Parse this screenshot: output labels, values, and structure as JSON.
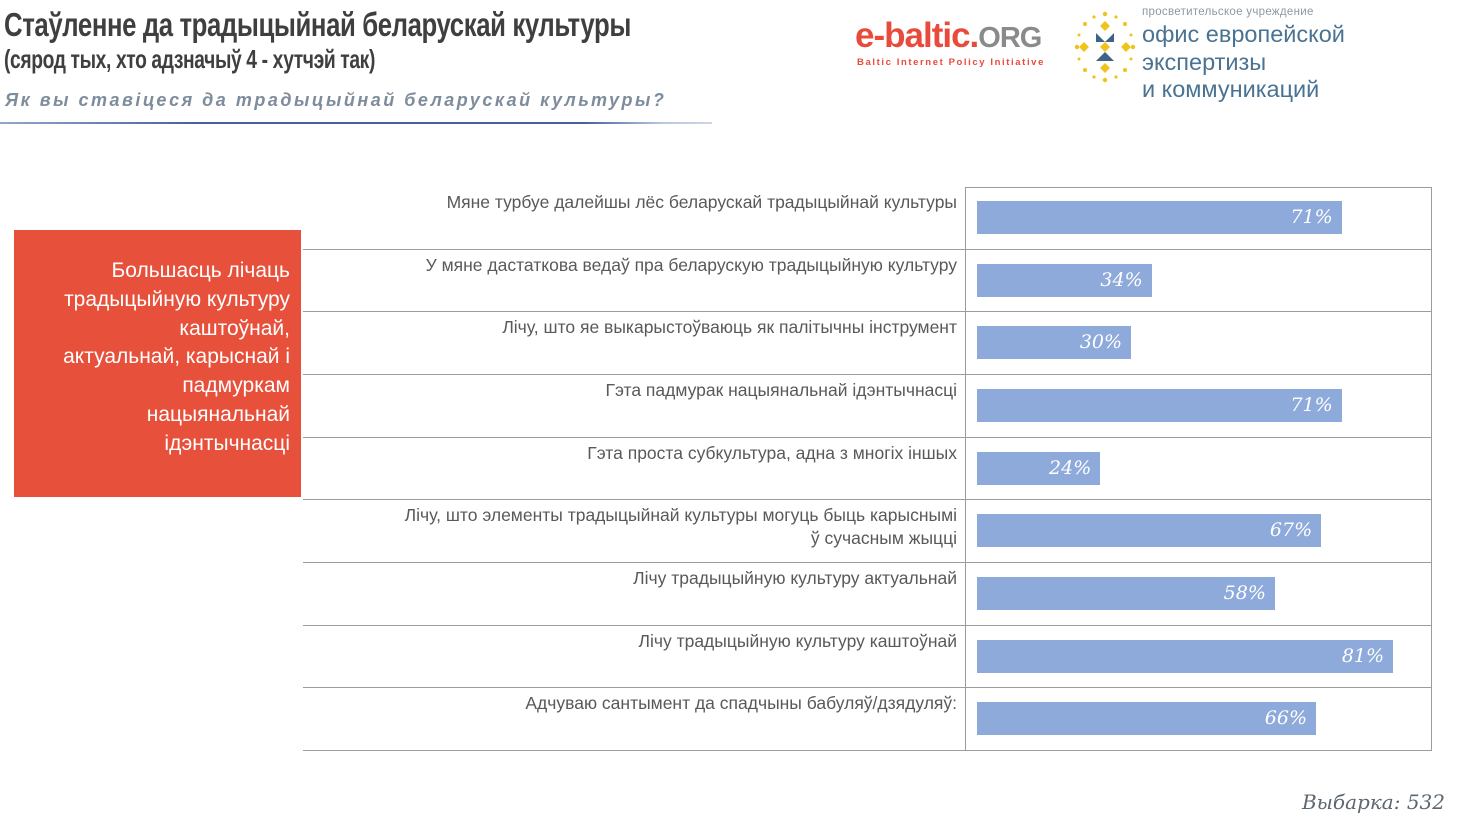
{
  "header": {
    "title": "Стаўленне да традыцыйнай беларускай культуры",
    "subtitle": "(сярод тых, хто адзначыў 4 - хутчэй так)",
    "question": "Як вы ставіцеся да традыцыйнай беларускай культуры?"
  },
  "logos": {
    "ebaltic": {
      "name_red": "e-baltic.",
      "name_gray": "ORG",
      "caption": "Baltic Internet Policy Initiative"
    },
    "oeec": {
      "small": "просветительское учреждение",
      "line1": "офис европейской экспертизы",
      "line2": "и коммуникаций"
    }
  },
  "callout": {
    "text": "Большасць лічаць\nтрадыцыйную культуру\nкаштоўнай,\nактуальнай, карыснай і\nпадмуркам\nнацыянальнай\nідэнтычнасці",
    "bg_color": "#e7503b",
    "text_color": "#ffffff"
  },
  "chart_data": {
    "type": "bar",
    "orientation": "horizontal",
    "categories": [
      "Мяне турбуе далейшы лёс беларускай традыцыйнай культуры",
      "У мяне дастаткова ведаў пра беларускую традыцыйную культуру",
      "Лічу, што яе выкарыстоўваюць як палітычны інструмент",
      "Гэта падмурак нацыянальнай ідэнтычнасці",
      "Гэта проста субкультура, адна з многіх іншых",
      "Лічу, што элементы традыцыйнай культуры могуць быць карыснымі\nў сучасным жыцці",
      "Лічу традыцыйную культуру актуальнай",
      "Лічу традыцыйную культуру каштоўнай",
      "Адчуваю сантымент да спадчыны бабуляў/дзядуляў:"
    ],
    "values": [
      71,
      34,
      30,
      71,
      24,
      67,
      58,
      81,
      66
    ],
    "unit": "%",
    "bar_color": "#8eaadb",
    "value_label_color": "#ffffff",
    "xlim": [
      0,
      88
    ],
    "grid": true,
    "grid_color": "#9c9c9c",
    "title": "Стаўленне да традыцыйнай беларускай культуры",
    "xlabel": "",
    "ylabel": ""
  },
  "footer": {
    "sample_label": "Выбарка: 532"
  }
}
